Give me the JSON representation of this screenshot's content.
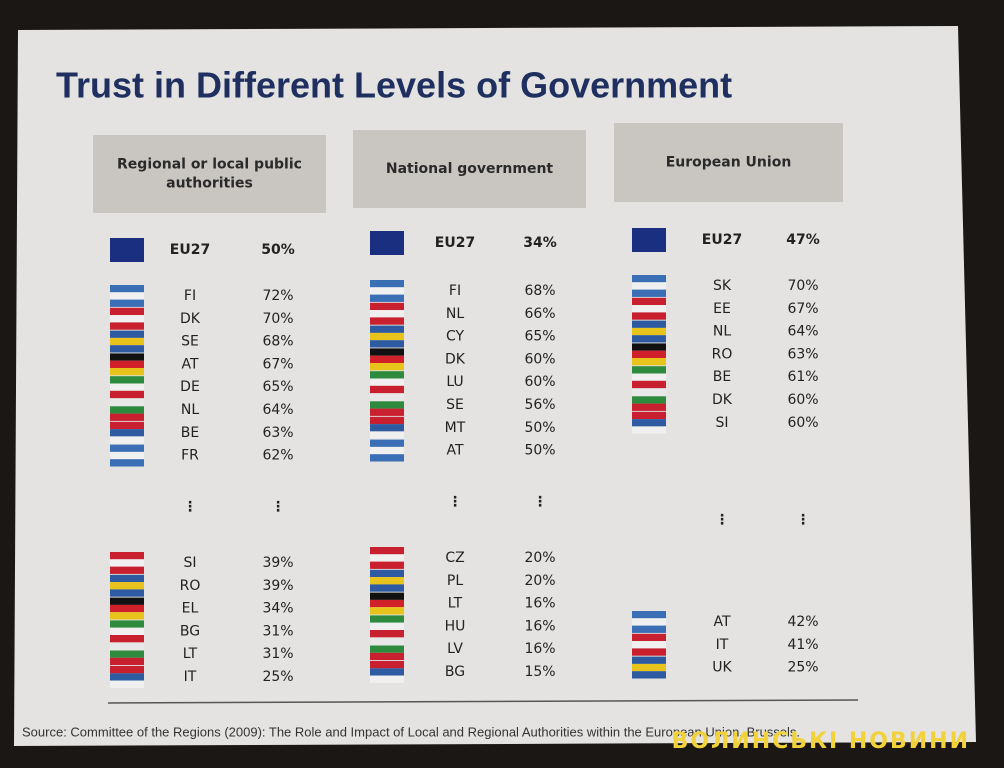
{
  "title": "Trust in Different Levels of Government",
  "columns": [
    {
      "header": [
        "Regional or local public",
        "authorities"
      ],
      "eu": {
        "code": "EU27",
        "value": "50%"
      },
      "top": [
        {
          "code": "FI",
          "value": "72%"
        },
        {
          "code": "DK",
          "value": "70%"
        },
        {
          "code": "SE",
          "value": "68%"
        },
        {
          "code": "AT",
          "value": "67%"
        },
        {
          "code": "DE",
          "value": "65%"
        },
        {
          "code": "NL",
          "value": "64%"
        },
        {
          "code": "BE",
          "value": "63%"
        },
        {
          "code": "FR",
          "value": "62%"
        }
      ],
      "ellipsis": [
        "⋮",
        "⋮"
      ],
      "bottom": [
        {
          "code": "SI",
          "value": "39%"
        },
        {
          "code": "RO",
          "value": "39%"
        },
        {
          "code": "EL",
          "value": "34%"
        },
        {
          "code": "BG",
          "value": "31%"
        },
        {
          "code": "LT",
          "value": "31%"
        },
        {
          "code": "IT",
          "value": "25%"
        }
      ]
    },
    {
      "header": [
        "National government"
      ],
      "eu": {
        "code": "EU27",
        "value": "34%"
      },
      "top": [
        {
          "code": "FI",
          "value": "68%"
        },
        {
          "code": "NL",
          "value": "66%"
        },
        {
          "code": "CY",
          "value": "65%"
        },
        {
          "code": "DK",
          "value": "60%"
        },
        {
          "code": "LU",
          "value": "60%"
        },
        {
          "code": "SE",
          "value": "56%"
        },
        {
          "code": "MT",
          "value": "50%"
        },
        {
          "code": "AT",
          "value": "50%"
        }
      ],
      "ellipsis": [
        "⋮",
        "⋮"
      ],
      "bottom": [
        {
          "code": "CZ",
          "value": "20%"
        },
        {
          "code": "PL",
          "value": "20%"
        },
        {
          "code": "LT",
          "value": "16%"
        },
        {
          "code": "HU",
          "value": "16%"
        },
        {
          "code": "LV",
          "value": "16%"
        },
        {
          "code": "BG",
          "value": "15%"
        }
      ]
    },
    {
      "header": [
        "European Union"
      ],
      "eu": {
        "code": "EU27",
        "value": "47%"
      },
      "top": [
        {
          "code": "SK",
          "value": "70%"
        },
        {
          "code": "EE",
          "value": "67%"
        },
        {
          "code": "NL",
          "value": "64%"
        },
        {
          "code": "RO",
          "value": "63%"
        },
        {
          "code": "BE",
          "value": "61%"
        },
        {
          "code": "DK",
          "value": "60%"
        },
        {
          "code": "SI",
          "value": "60%"
        }
      ],
      "ellipsis": [
        "⋮",
        "⋮"
      ],
      "bottom": [
        {
          "code": "AT",
          "value": "42%"
        },
        {
          "code": "IT",
          "value": "41%"
        },
        {
          "code": "UK",
          "value": "25%"
        }
      ]
    }
  ],
  "source": "Source: Committee of the Regions (2009): The Role and Impact of Local and Regional Authorities within the European Union, Brussels.",
  "watermark": "ВОЛИНСЬКІ НОВИНИ"
}
